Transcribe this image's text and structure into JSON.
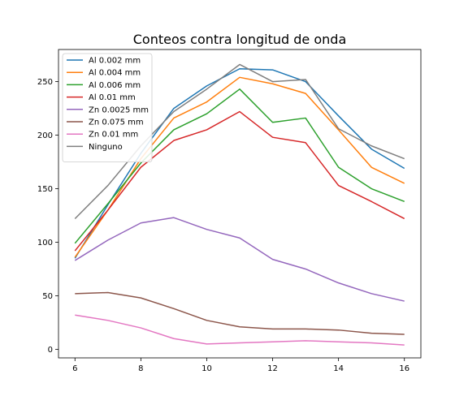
{
  "chart_data": {
    "type": "line",
    "title": "Conteos contra longitud de onda",
    "xlabel": "",
    "ylabel": "",
    "xlim": [
      5.5,
      16.5
    ],
    "ylim": [
      -8,
      280
    ],
    "x_ticks": [
      6,
      8,
      10,
      12,
      14,
      16
    ],
    "y_ticks": [
      0,
      50,
      100,
      150,
      200,
      250
    ],
    "x": [
      6,
      7,
      8,
      9,
      10,
      11,
      12,
      13,
      14,
      15,
      16
    ],
    "grid": false,
    "legend_position": "upper-left",
    "series": [
      {
        "name": "Al 0.002 mm",
        "color": "#1f77b4",
        "values": [
          85,
          135,
          183,
          225,
          246,
          262,
          261,
          250,
          218,
          187,
          169
        ]
      },
      {
        "name": "Al 0.004 mm",
        "color": "#ff7f0e",
        "values": [
          86,
          130,
          178,
          216,
          231,
          254,
          248,
          239,
          205,
          170,
          155
        ]
      },
      {
        "name": "Al 0.006 mm",
        "color": "#2ca02c",
        "values": [
          99,
          136,
          174,
          205,
          220,
          243,
          212,
          216,
          170,
          150,
          138
        ]
      },
      {
        "name": "Al 0.01 mm",
        "color": "#d62728",
        "values": [
          92,
          130,
          170,
          195,
          205,
          222,
          198,
          193,
          153,
          138,
          122
        ]
      },
      {
        "name": "Zn 0.0025 mm",
        "color": "#9467bd",
        "values": [
          83,
          102,
          118,
          123,
          112,
          104,
          84,
          75,
          62,
          52,
          45
        ]
      },
      {
        "name": "Zn 0.075 mm",
        "color": "#8c564b",
        "values": [
          52,
          53,
          48,
          38,
          27,
          21,
          19,
          19,
          18,
          15,
          14
        ]
      },
      {
        "name": "Zn 0.01 mm",
        "color": "#e377c2",
        "values": [
          32,
          27,
          20,
          10,
          5,
          6,
          7,
          8,
          7,
          6,
          4
        ]
      },
      {
        "name": "Ninguno",
        "color": "#7f7f7f",
        "values": [
          122,
          153,
          190,
          222,
          243,
          266,
          250,
          252,
          206,
          190,
          178
        ]
      }
    ]
  }
}
